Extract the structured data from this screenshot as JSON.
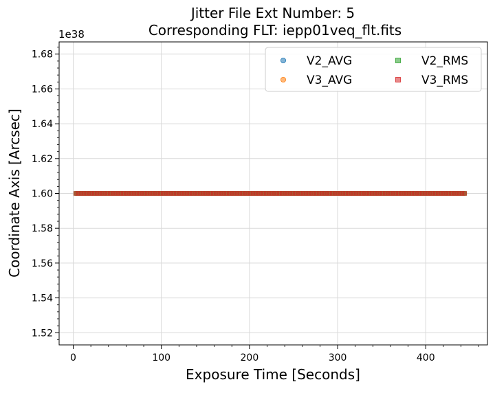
{
  "chart_data": {
    "type": "scatter",
    "title_line1": "Jitter File Ext Number: 5",
    "title_line2": "Corresponding FLT: iepp01veq_flt.fits",
    "xlabel": "Exposure Time [Seconds]",
    "ylabel": "Coordinate Axis [Arcsec]",
    "y_offset_label": "1e38",
    "xlim": [
      -16,
      470
    ],
    "ylim": [
      1.513,
      1.687
    ],
    "x_ticks": [
      0,
      100,
      200,
      300,
      400
    ],
    "x_tick_labels": [
      "0",
      "100",
      "200",
      "300",
      "400"
    ],
    "y_ticks": [
      1.52,
      1.54,
      1.56,
      1.58,
      1.6,
      1.62,
      1.64,
      1.66,
      1.68
    ],
    "y_tick_labels": [
      "1.52",
      "1.54",
      "1.56",
      "1.58",
      "1.60",
      "1.62",
      "1.64",
      "1.66",
      "1.68"
    ],
    "grid": true,
    "legend_position": "top-right",
    "legend_columns": 2,
    "x_range": {
      "start": 3,
      "end": 446,
      "step": 3
    },
    "series": [
      {
        "name": "V2_AVG",
        "marker": "circle",
        "color": "#1f77b4",
        "y_value": 1.6
      },
      {
        "name": "V3_AVG",
        "marker": "circle",
        "color": "#ff7f0e",
        "y_value": 1.6
      },
      {
        "name": "V2_RMS",
        "marker": "square",
        "color": "#2ca02c",
        "y_value": 1.6
      },
      {
        "name": "V3_RMS",
        "marker": "square",
        "color": "#d62728",
        "y_value": 1.6
      }
    ]
  }
}
